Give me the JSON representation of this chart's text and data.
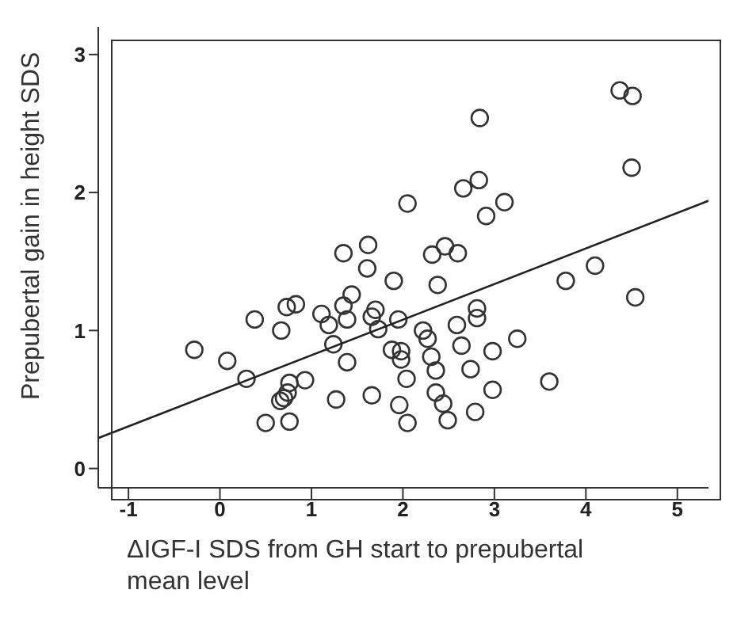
{
  "chart_data": {
    "type": "scatter",
    "xlabel": "ΔIGF-I SDS from GH start to prepubertal mean level",
    "ylabel": "Prepubertal gain in height SDS",
    "xlim": [
      -1.33,
      5.34
    ],
    "ylim": [
      -0.14,
      3.2
    ],
    "xticks": [
      -1,
      0,
      1,
      2,
      3,
      4,
      5
    ],
    "yticks": [
      0,
      1,
      2,
      3
    ],
    "marker": "circle",
    "series": [
      {
        "color": "#333333",
        "x": [
          -0.28,
          0.08,
          0.29,
          0.38,
          0.67,
          0.73,
          0.83,
          0.5,
          0.76,
          0.76,
          0.93,
          0.74,
          0.7,
          0.66,
          1.11,
          1.19,
          1.24,
          1.35,
          1.62,
          1.61,
          1.44,
          1.35,
          1.39,
          1.39,
          1.27,
          1.66,
          1.7,
          1.66,
          1.73,
          1.9,
          1.95,
          1.88,
          1.98,
          1.98,
          2.04,
          1.96,
          2.05,
          2.05,
          4.37,
          4.51,
          2.84,
          4.5,
          2.66,
          2.83,
          3.11,
          2.91,
          2.32,
          2.46,
          2.6,
          2.38,
          4.1,
          3.78,
          4.54,
          2.81,
          2.81,
          2.59,
          2.22,
          2.27,
          3.25,
          2.64,
          2.98,
          2.31,
          2.36,
          2.74,
          2.36,
          2.44,
          2.98,
          3.6,
          2.49,
          2.79
        ],
        "values": [
          0.86,
          0.78,
          0.65,
          1.08,
          1.0,
          1.17,
          1.19,
          0.33,
          0.34,
          0.62,
          0.64,
          0.55,
          0.51,
          0.49,
          1.12,
          1.04,
          0.9,
          1.56,
          1.62,
          1.45,
          1.26,
          1.18,
          1.08,
          0.77,
          0.5,
          0.53,
          1.15,
          1.1,
          1.01,
          1.36,
          1.08,
          0.86,
          0.85,
          0.79,
          0.65,
          0.46,
          0.33,
          1.92,
          2.74,
          2.7,
          2.54,
          2.18,
          2.03,
          2.09,
          1.93,
          1.83,
          1.55,
          1.61,
          1.56,
          1.33,
          1.47,
          1.36,
          1.24,
          1.16,
          1.09,
          1.04,
          1.0,
          0.94,
          0.94,
          0.89,
          0.85,
          0.81,
          0.71,
          0.72,
          0.55,
          0.47,
          0.57,
          0.63,
          0.35,
          0.41
        ]
      },
      {
        "type": "line",
        "marker": "none",
        "color": "#222222",
        "x": [
          -1.33,
          5.34
        ],
        "values": [
          0.22,
          1.94
        ]
      }
    ]
  }
}
